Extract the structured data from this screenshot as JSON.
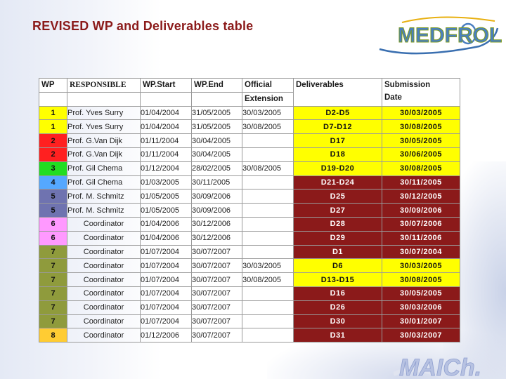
{
  "title": "REVISED WP and Deliverables table",
  "logos": {
    "top": "MEDFROL",
    "bottom": "MAICh."
  },
  "colors": {
    "title": "#8b1a1a",
    "header_accent": "#8b1a1a",
    "highlight": "#ffff00",
    "wp_groups": {
      "1": "#ffff00",
      "2": "#ff2020",
      "3": "#22dd22",
      "4": "#55a8ff",
      "5": "#6f73b0",
      "6": "#ff99ff",
      "7": "#8f9b3c",
      "8": "#ffcc33"
    }
  },
  "table": {
    "headers": {
      "wp": "WP",
      "responsible": "RESPONSIBLE",
      "wp_start": "WP.Start",
      "wp_end": "WP.End",
      "official": "Official",
      "extension": "Extension",
      "deliverables": "Deliverables",
      "submission": "Submission",
      "date": "Date"
    },
    "rows": [
      {
        "wp": "1",
        "responsible": "Prof. Yves Surry",
        "start": "01/04/2004",
        "end": "31/05/2005",
        "extension": "30/03/2005",
        "deliverables": "D2-D5",
        "submission": "30/03/2005",
        "highlight": true
      },
      {
        "wp": "1",
        "responsible": "Prof. Yves Surry",
        "start": "01/04/2004",
        "end": "31/05/2005",
        "extension": "30/08/2005",
        "deliverables": "D7-D12",
        "submission": "30/08/2005",
        "highlight": true
      },
      {
        "wp": "2",
        "responsible": "Prof. G.Van Dijk",
        "start": "01/11/2004",
        "end": "30/04/2005",
        "extension": "",
        "deliverables": "D17",
        "submission": "30/05/2005",
        "highlight": true
      },
      {
        "wp": "2",
        "responsible": "Prof. G.Van Dijk",
        "start": "01/11/2004",
        "end": "30/04/2005",
        "extension": "",
        "deliverables": "D18",
        "submission": "30/06/2005",
        "highlight": true
      },
      {
        "wp": "3",
        "responsible": "Prof. Gil Chema",
        "start": "01/12/2004",
        "end": "28/02/2005",
        "extension": "30/08/2005",
        "deliverables": "D19-D20",
        "submission": "30/08/2005",
        "highlight": true
      },
      {
        "wp": "4",
        "responsible": "Prof. Gil Chema",
        "start": "01/03/2005",
        "end": "30/11/2005",
        "extension": "",
        "deliverables": "D21-D24",
        "submission": "30/11/2005",
        "highlight": false
      },
      {
        "wp": "5",
        "responsible": "Prof. M. Schmitz",
        "start": "01/05/2005",
        "end": "30/09/2006",
        "extension": "",
        "deliverables": "D25",
        "submission": "30/12/2005",
        "highlight": false
      },
      {
        "wp": "5",
        "responsible": "Prof. M. Schmitz",
        "start": "01/05/2005",
        "end": "30/09/2006",
        "extension": "",
        "deliverables": "D27",
        "submission": "30/09/2006",
        "highlight": false
      },
      {
        "wp": "6",
        "responsible": "Coordinator",
        "start": "01/04/2006",
        "end": "30/12/2006",
        "extension": "",
        "deliverables": "D28",
        "submission": "30/07/2006",
        "highlight": false
      },
      {
        "wp": "6",
        "responsible": "Coordinator",
        "start": "01/04/2006",
        "end": "30/12/2006",
        "extension": "",
        "deliverables": "D29",
        "submission": "30/11/2006",
        "highlight": false
      },
      {
        "wp": "7",
        "responsible": "Coordinator",
        "start": "01/07/2004",
        "end": "30/07/2007",
        "extension": "",
        "deliverables": "D1",
        "submission": "30/07/2004",
        "highlight": false
      },
      {
        "wp": "7",
        "responsible": "Coordinator",
        "start": "01/07/2004",
        "end": "30/07/2007",
        "extension": "30/03/2005",
        "deliverables": "D6",
        "submission": "30/03/2005",
        "highlight": true
      },
      {
        "wp": "7",
        "responsible": "Coordinator",
        "start": "01/07/2004",
        "end": "30/07/2007",
        "extension": "30/08/2005",
        "deliverables": "D13-D15",
        "submission": "30/08/2005",
        "highlight": true
      },
      {
        "wp": "7",
        "responsible": "Coordinator",
        "start": "01/07/2004",
        "end": "30/07/2007",
        "extension": "",
        "deliverables": "D16",
        "submission": "30/05/2005",
        "highlight": false
      },
      {
        "wp": "7",
        "responsible": "Coordinator",
        "start": "01/07/2004",
        "end": "30/07/2007",
        "extension": "",
        "deliverables": "D26",
        "submission": "30/03/2006",
        "highlight": false
      },
      {
        "wp": "7",
        "responsible": "Coordinator",
        "start": "01/07/2004",
        "end": "30/07/2007",
        "extension": "",
        "deliverables": "D30",
        "submission": "30/01/2007",
        "highlight": false
      },
      {
        "wp": "8",
        "responsible": "Coordinator",
        "start": "01/12/2006",
        "end": "30/07/2007",
        "extension": "",
        "deliverables": "D31",
        "submission": "30/03/2007",
        "highlight": false
      }
    ]
  }
}
